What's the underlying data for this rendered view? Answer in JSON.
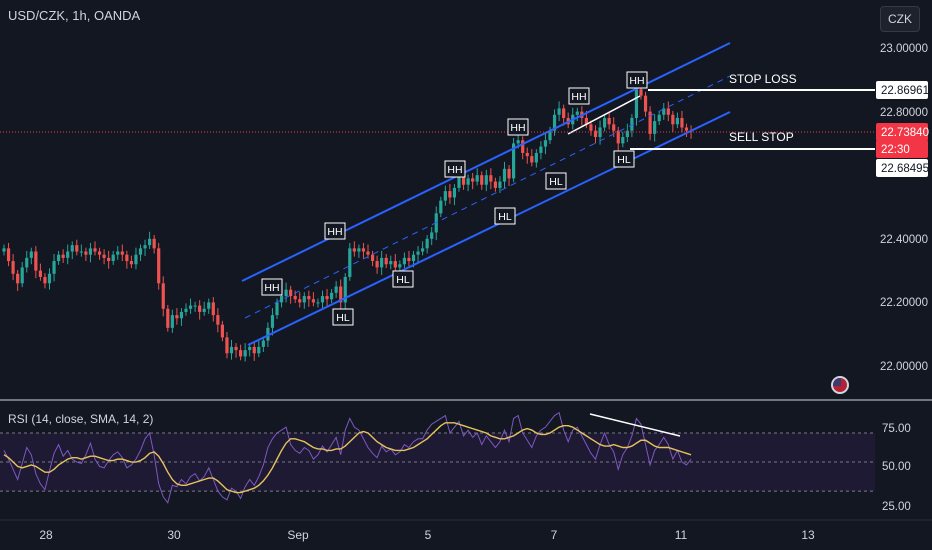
{
  "header": {
    "symbol": "USD/CZK, 1h, OANDA"
  },
  "currency_button": "CZK",
  "rsi_header": "RSI (14, close, SMA, 14, 2)",
  "colors": {
    "bg": "#131722",
    "grid": "#1e222d",
    "up": "#26a69a",
    "down": "#ef5350",
    "channel": "#2962ff",
    "rsi_line": "#7e57c2",
    "rsi_ma": "#e6c35c",
    "last_price": "#f23645",
    "text": "#d1d4dc"
  },
  "chart_data": [
    {
      "type": "candlestick",
      "title": "USD/CZK, 1h, OANDA",
      "y_axis_ticks": [
        "23.00000",
        "22.80000",
        "22.40000",
        "22.20000",
        "22.00000"
      ],
      "x_axis_ticks": [
        "28",
        "30",
        "Sep",
        "5",
        "7",
        "11",
        "13"
      ],
      "ylim": [
        21.95,
        23.08
      ],
      "price_labels": {
        "stop_loss": "22.86961",
        "last_price": "22.73840",
        "countdown": "22:30",
        "sell_stop": "22.68495"
      },
      "annotations": {
        "stop_loss_text": "STOP LOSS",
        "sell_stop_text": "SELL STOP",
        "hh": [
          "HH",
          "HH",
          "HH",
          "HH",
          "HH",
          "HH"
        ],
        "hl": [
          "HL",
          "HL",
          "HL",
          "HL",
          "HL"
        ]
      },
      "close_series": [
        22.37,
        22.33,
        22.29,
        22.26,
        22.31,
        22.34,
        22.36,
        22.3,
        22.28,
        22.26,
        22.29,
        22.33,
        22.35,
        22.34,
        22.36,
        22.38,
        22.36,
        22.36,
        22.35,
        22.37,
        22.36,
        22.35,
        22.34,
        22.33,
        22.35,
        22.36,
        22.35,
        22.33,
        22.32,
        22.35,
        22.37,
        22.38,
        22.4,
        22.37,
        22.26,
        22.18,
        22.12,
        22.16,
        22.15,
        22.17,
        22.18,
        22.19,
        22.19,
        22.17,
        22.18,
        22.2,
        22.16,
        22.13,
        22.09,
        22.04,
        22.06,
        22.05,
        22.03,
        22.05,
        22.06,
        22.04,
        22.06,
        22.08,
        22.12,
        22.16,
        22.2,
        22.22,
        22.24,
        22.22,
        22.21,
        22.2,
        22.22,
        22.21,
        22.2,
        22.2,
        22.22,
        22.21,
        22.23,
        22.25,
        22.2,
        22.28,
        22.37,
        22.36,
        22.37,
        22.36,
        22.35,
        22.33,
        22.31,
        22.34,
        22.32,
        22.33,
        22.31,
        22.32,
        22.34,
        22.33,
        22.35,
        22.36,
        22.37,
        22.4,
        22.42,
        22.48,
        22.52,
        22.55,
        22.53,
        22.56,
        22.6,
        22.57,
        22.59,
        22.58,
        22.6,
        22.57,
        22.6,
        22.58,
        22.56,
        22.58,
        22.62,
        22.59,
        22.7,
        22.71,
        22.67,
        22.66,
        22.64,
        22.67,
        22.69,
        22.71,
        22.74,
        22.79,
        22.81,
        22.78,
        22.76,
        22.79,
        22.8,
        22.78,
        22.76,
        22.74,
        22.72,
        22.75,
        22.78,
        22.76,
        22.74,
        22.7,
        22.72,
        22.74,
        22.78,
        22.87,
        22.85,
        22.8,
        22.73,
        22.77,
        22.79,
        22.81,
        22.79,
        22.76,
        22.78,
        22.75,
        22.74,
        22.7384
      ],
      "rsi": {
        "title": "RSI (14, close, SMA, 14, 2)",
        "ticks": [
          "75.00",
          "50.00",
          "25.00"
        ],
        "ylim": [
          17,
          92
        ],
        "bands": [
          70,
          50,
          30
        ],
        "series": [
          {
            "name": "RSI",
            "values": [
              58,
              52,
              45,
              38,
              49,
              60,
              55,
              42,
              35,
              31,
              44,
              56,
              62,
              54,
              58,
              52,
              50,
              49,
              55,
              63,
              52,
              47,
              46,
              51,
              55,
              57,
              53,
              46,
              48,
              52,
              58,
              66,
              70,
              55,
              35,
              26,
              22,
              34,
              33,
              38,
              35,
              40,
              42,
              37,
              40,
              46,
              38,
              30,
              26,
              24,
              32,
              30,
              25,
              33,
              38,
              34,
              40,
              48,
              60,
              66,
              70,
              72,
              74,
              62,
              58,
              56,
              60,
              58,
              52,
              55,
              61,
              57,
              62,
              67,
              55,
              72,
              80,
              74,
              72,
              66,
              60,
              56,
              53,
              61,
              57,
              59,
              55,
              57,
              62,
              60,
              64,
              66,
              66,
              72,
              76,
              78,
              80,
              82,
              70,
              74,
              78,
              68,
              72,
              67,
              70,
              62,
              68,
              64,
              60,
              64,
              72,
              64,
              80,
              82,
              70,
              65,
              60,
              68,
              72,
              74,
              78,
              82,
              84,
              72,
              64,
              72,
              74,
              68,
              62,
              56,
              52,
              62,
              70,
              62,
              57,
              45,
              55,
              60,
              68,
              80,
              76,
              62,
              48,
              58,
              62,
              67,
              62,
              52,
              58,
              50,
              48,
              52
            ]
          },
          {
            "name": "RSI-based MA",
            "values": [
              55,
              53,
              50,
              47,
              46,
              47,
              48,
              47,
              45,
              43,
              43,
              45,
              48,
              50,
              52,
              53,
              53,
              52,
              53,
              54,
              54,
              53,
              52,
              51,
              51,
              52,
              52,
              51,
              50,
              50,
              51,
              53,
              56,
              57,
              54,
              49,
              43,
              38,
              35,
              34,
              34,
              35,
              36,
              37,
              38,
              39,
              39,
              37,
              34,
              31,
              30,
              29,
              29,
              30,
              31,
              32,
              34,
              37,
              41,
              46,
              52,
              58,
              63,
              66,
              66,
              65,
              64,
              62,
              60,
              59,
              59,
              58,
              58,
              59,
              59,
              61,
              64,
              67,
              70,
              71,
              70,
              67,
              64,
              62,
              60,
              59,
              58,
              58,
              58,
              59,
              60,
              62,
              64,
              66,
              69,
              72,
              75,
              77,
              77,
              77,
              76,
              75,
              74,
              73,
              72,
              71,
              70,
              68,
              67,
              66,
              66,
              67,
              68,
              70,
              72,
              73,
              72,
              70,
              69,
              69,
              70,
              72,
              74,
              75,
              75,
              74,
              72,
              70,
              68,
              66,
              64,
              62,
              61,
              61,
              62,
              61,
              60,
              60,
              61,
              63,
              65,
              65,
              63,
              61,
              60,
              60,
              60,
              59,
              58,
              57,
              56,
              55
            ]
          }
        ]
      }
    }
  ]
}
